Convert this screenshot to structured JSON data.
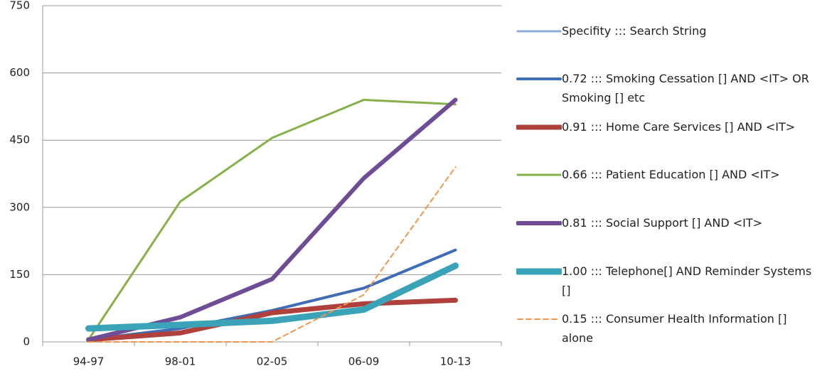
{
  "chart_data": {
    "type": "line",
    "categories": [
      "94-97",
      "98-01",
      "02-05",
      "06-09",
      "10-13"
    ],
    "series": [
      {
        "name": "Specifity ::: Search String",
        "color": "#8eaadb",
        "values": [
          null,
          null,
          null,
          null,
          null
        ]
      },
      {
        "name": "0.72 ::: Smoking Cessation [] AND <IT> OR Smoking [] etc",
        "color": "#3e6db5",
        "values": [
          5,
          30,
          70,
          120,
          205
        ]
      },
      {
        "name": "0.91 ::: Home Care Services [] AND <IT>",
        "color": "#b0403c",
        "values": [
          5,
          20,
          65,
          85,
          93
        ]
      },
      {
        "name": "0.66 ::: Patient Education [] AND <IT>",
        "color": "#86b04a",
        "values": [
          5,
          313,
          455,
          540,
          530
        ]
      },
      {
        "name": "0.81 ::: Social Support [] AND <IT>",
        "color": "#6e4c96",
        "values": [
          5,
          55,
          140,
          365,
          540
        ]
      },
      {
        "name": "1.00 ::: Telephone[] AND Reminder Systems []",
        "color": "#3aa3b8",
        "values": [
          30,
          38,
          47,
          72,
          170
        ]
      },
      {
        "name": "0.15 ::: Consumer Health Information [] alone",
        "color": "#f0964a",
        "line_style": "dashed",
        "values": [
          0,
          0,
          0,
          105,
          390
        ]
      }
    ],
    "ylim": [
      0,
      750
    ],
    "yticks": [
      0,
      150,
      300,
      450,
      600,
      750
    ],
    "grid": true
  }
}
